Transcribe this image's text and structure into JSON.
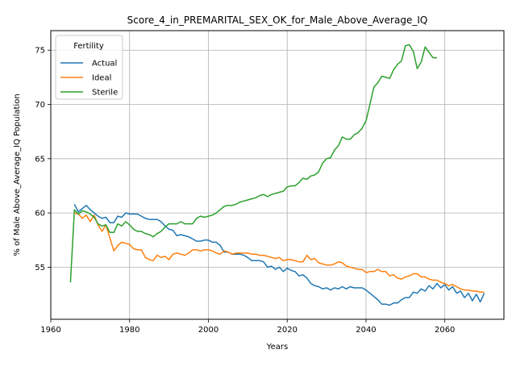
{
  "chart_data": {
    "type": "line",
    "title": "Score_4_in_PREMARITAL_SEX_OK_for_Male_Above_Average_IQ",
    "xlabel": "Years",
    "ylabel": "% of Male Above_Average_IQ Population",
    "xlim": [
      1960,
      2075
    ],
    "ylim": [
      50.2,
      76.8
    ],
    "xticks": [
      1960,
      1980,
      2000,
      2020,
      2040,
      2060
    ],
    "yticks": [
      55,
      60,
      65,
      70,
      75
    ],
    "grid": true,
    "legend": {
      "title": "Fertility",
      "placement": "upper-left"
    },
    "series": [
      {
        "name": "Actual",
        "color": "#1f77b4",
        "x": [
          1966,
          1967,
          1968,
          1969,
          1970,
          1971,
          1972,
          1973,
          1974,
          1975,
          1976,
          1977,
          1978,
          1979,
          1980,
          1981,
          1982,
          1983,
          1984,
          1985,
          1986,
          1987,
          1988,
          1989,
          1990,
          1991,
          1992,
          1993,
          1994,
          1995,
          1996,
          1997,
          1998,
          1999,
          2000,
          2001,
          2002,
          2003,
          2004,
          2005,
          2006,
          2007,
          2008,
          2009,
          2010,
          2011,
          2012,
          2013,
          2014,
          2015,
          2016,
          2017,
          2018,
          2019,
          2020,
          2021,
          2022,
          2023,
          2024,
          2025,
          2026,
          2027,
          2028,
          2029,
          2030,
          2031,
          2032,
          2033,
          2034,
          2035,
          2036,
          2037,
          2038,
          2039,
          2040,
          2041,
          2042,
          2043,
          2044,
          2045,
          2046,
          2047,
          2048,
          2049,
          2050,
          2051,
          2052,
          2053,
          2054,
          2055,
          2056,
          2057,
          2058,
          2059,
          2060,
          2061,
          2062,
          2063,
          2064,
          2065,
          2066,
          2067,
          2068,
          2069,
          2070
        ],
        "y": [
          60.8,
          60.1,
          60.4,
          60.7,
          60.3,
          60.0,
          59.7,
          59.5,
          59.6,
          59.1,
          59.1,
          59.7,
          59.6,
          60.0,
          59.9,
          59.9,
          59.9,
          59.7,
          59.5,
          59.4,
          59.4,
          59.4,
          59.2,
          58.8,
          58.5,
          58.4,
          57.9,
          58.0,
          57.9,
          57.8,
          57.6,
          57.4,
          57.4,
          57.5,
          57.5,
          57.3,
          57.3,
          57.0,
          56.4,
          56.4,
          56.2,
          56.2,
          56.2,
          56.1,
          55.9,
          55.6,
          55.6,
          55.6,
          55.5,
          55.0,
          55.1,
          54.8,
          55.0,
          54.6,
          54.9,
          54.7,
          54.6,
          54.2,
          54.3,
          54.0,
          53.5,
          53.3,
          53.2,
          53.0,
          53.1,
          52.9,
          53.1,
          53.0,
          53.2,
          53.0,
          53.2,
          53.1,
          53.1,
          53.1,
          52.9,
          52.6,
          52.3,
          52.0,
          51.6,
          51.6,
          51.5,
          51.7,
          51.7,
          52.0,
          52.2,
          52.2,
          52.7,
          52.6,
          53.0,
          52.8,
          53.3,
          53.0,
          53.5,
          53.1,
          53.4,
          52.9,
          53.2,
          52.6,
          52.8,
          52.2,
          52.6,
          51.9,
          52.5,
          51.8,
          52.6
        ]
      },
      {
        "name": "Ideal",
        "color": "#ff7f0e",
        "x": [
          1966,
          1967,
          1968,
          1969,
          1970,
          1971,
          1972,
          1973,
          1974,
          1975,
          1976,
          1977,
          1978,
          1979,
          1980,
          1981,
          1982,
          1983,
          1984,
          1985,
          1986,
          1987,
          1988,
          1989,
          1990,
          1991,
          1992,
          1993,
          1994,
          1995,
          1996,
          1997,
          1998,
          1999,
          2000,
          2001,
          2002,
          2003,
          2004,
          2005,
          2006,
          2007,
          2008,
          2009,
          2010,
          2011,
          2012,
          2013,
          2014,
          2015,
          2016,
          2017,
          2018,
          2019,
          2020,
          2021,
          2022,
          2023,
          2024,
          2025,
          2026,
          2027,
          2028,
          2029,
          2030,
          2031,
          2032,
          2033,
          2034,
          2035,
          2036,
          2037,
          2038,
          2039,
          2040,
          2041,
          2042,
          2043,
          2044,
          2045,
          2046,
          2047,
          2048,
          2049,
          2050,
          2051,
          2052,
          2053,
          2054,
          2055,
          2056,
          2057,
          2058,
          2059,
          2060,
          2061,
          2062,
          2063,
          2064,
          2065,
          2066,
          2067,
          2068,
          2069,
          2070
        ],
        "y": [
          60.0,
          59.9,
          59.5,
          59.8,
          59.2,
          59.8,
          58.9,
          58.3,
          58.9,
          57.7,
          56.5,
          57.0,
          57.3,
          57.2,
          57.1,
          56.7,
          56.6,
          56.6,
          55.9,
          55.7,
          55.6,
          56.1,
          55.9,
          56.0,
          55.7,
          56.2,
          56.3,
          56.2,
          56.1,
          56.3,
          56.6,
          56.6,
          56.5,
          56.6,
          56.6,
          56.5,
          56.3,
          56.2,
          56.5,
          56.4,
          56.2,
          56.3,
          56.3,
          56.3,
          56.3,
          56.2,
          56.2,
          56.1,
          56.1,
          56.0,
          55.9,
          55.8,
          55.9,
          55.6,
          55.7,
          55.7,
          55.6,
          55.5,
          55.5,
          56.1,
          55.7,
          55.8,
          55.4,
          55.3,
          55.2,
          55.2,
          55.3,
          55.5,
          55.4,
          55.1,
          55.0,
          54.9,
          54.8,
          54.8,
          54.5,
          54.6,
          54.6,
          54.8,
          54.6,
          54.6,
          54.2,
          54.3,
          54.0,
          53.9,
          54.1,
          54.2,
          54.4,
          54.4,
          54.1,
          54.1,
          53.9,
          53.8,
          53.8,
          53.6,
          53.5,
          53.3,
          53.4,
          53.2,
          53.0,
          52.9,
          52.9,
          52.8,
          52.8,
          52.7,
          52.7
        ]
      },
      {
        "name": "Sterile",
        "color": "#2ca02c",
        "x": [
          1965,
          1966,
          1967,
          1968,
          1969,
          1970,
          1971,
          1972,
          1973,
          1974,
          1975,
          1976,
          1977,
          1978,
          1979,
          1980,
          1981,
          1982,
          1983,
          1984,
          1985,
          1986,
          1987,
          1988,
          1989,
          1990,
          1991,
          1992,
          1993,
          1994,
          1995,
          1996,
          1997,
          1998,
          1999,
          2000,
          2001,
          2002,
          2003,
          2004,
          2005,
          2006,
          2007,
          2008,
          2009,
          2010,
          2011,
          2012,
          2013,
          2014,
          2015,
          2016,
          2017,
          2018,
          2019,
          2020,
          2021,
          2022,
          2023,
          2024,
          2025,
          2026,
          2027,
          2028,
          2029,
          2030,
          2031,
          2032,
          2033,
          2034,
          2035,
          2036,
          2037,
          2038,
          2039,
          2040,
          2041,
          2042,
          2043,
          2044,
          2045,
          2046,
          2047,
          2048,
          2049,
          2050,
          2051,
          2052,
          2053,
          2054,
          2055,
          2056,
          2057,
          2058
        ],
        "y": [
          53.6,
          60.3,
          59.9,
          60.2,
          60.1,
          59.9,
          59.6,
          59.0,
          58.8,
          58.9,
          58.2,
          58.2,
          59.0,
          58.8,
          59.2,
          58.9,
          58.5,
          58.3,
          58.3,
          58.1,
          58.0,
          57.8,
          58.1,
          58.3,
          58.7,
          59.0,
          59.0,
          59.0,
          59.2,
          59.0,
          59.0,
          59.0,
          59.5,
          59.7,
          59.6,
          59.7,
          59.8,
          60.0,
          60.3,
          60.6,
          60.7,
          60.7,
          60.8,
          61.0,
          61.1,
          61.2,
          61.3,
          61.4,
          61.6,
          61.7,
          61.5,
          61.7,
          61.8,
          61.9,
          62.0,
          62.4,
          62.5,
          62.5,
          62.8,
          63.2,
          63.1,
          63.4,
          63.5,
          63.8,
          64.6,
          65.0,
          65.1,
          65.8,
          66.2,
          67.0,
          66.8,
          66.8,
          67.2,
          67.4,
          67.8,
          68.5,
          70.0,
          71.6,
          72.0,
          72.6,
          72.5,
          72.4,
          73.2,
          73.7,
          74.0,
          75.4,
          75.5,
          74.9,
          73.3,
          73.9,
          75.3,
          74.8,
          74.3,
          74.3
        ]
      }
    ]
  }
}
